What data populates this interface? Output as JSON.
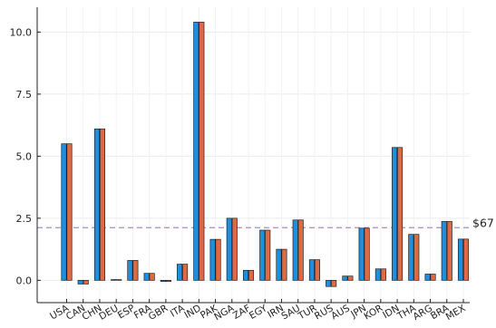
{
  "chart_data": {
    "type": "bar",
    "title": "",
    "xlabel": "",
    "ylabel": "",
    "ylim": [
      -0.9,
      11.0
    ],
    "yticks": [
      0.0,
      2.5,
      5.0,
      7.5,
      10.0
    ],
    "ytick_labels": [
      "0.0",
      "2.5",
      "5.0",
      "7.5",
      "10.0"
    ],
    "grid": true,
    "legend": "none",
    "categories": [
      "USA",
      "CAN",
      "CHN",
      "DEU",
      "ESP",
      "FRA",
      "GBR",
      "ITA",
      "IND",
      "PAK",
      "NGA",
      "ZAF",
      "EGY",
      "IRN",
      "SAU",
      "TUR",
      "RUS",
      "AUS",
      "JPN",
      "KOR",
      "IDN",
      "THA",
      "ARG",
      "BRA",
      "MEX"
    ],
    "series": [
      {
        "color": "#1f8fdd",
        "values": [
          5.5,
          -0.15,
          6.1,
          0.03,
          0.8,
          0.28,
          -0.05,
          0.65,
          10.4,
          1.65,
          2.5,
          0.4,
          2.02,
          1.25,
          2.43,
          0.83,
          -0.25,
          0.17,
          2.1,
          0.46,
          5.35,
          1.85,
          0.25,
          2.37,
          1.66
        ]
      },
      {
        "color": "#dd6a45",
        "values": [
          5.5,
          -0.15,
          6.1,
          0.03,
          0.8,
          0.28,
          -0.05,
          0.65,
          10.4,
          1.65,
          2.5,
          0.4,
          2.02,
          1.25,
          2.43,
          0.83,
          -0.25,
          0.17,
          2.1,
          0.46,
          5.35,
          1.85,
          0.25,
          2.37,
          1.66
        ]
      }
    ],
    "reference_line": {
      "value": 2.12,
      "label": "$67",
      "color": "#a98bc9"
    }
  }
}
